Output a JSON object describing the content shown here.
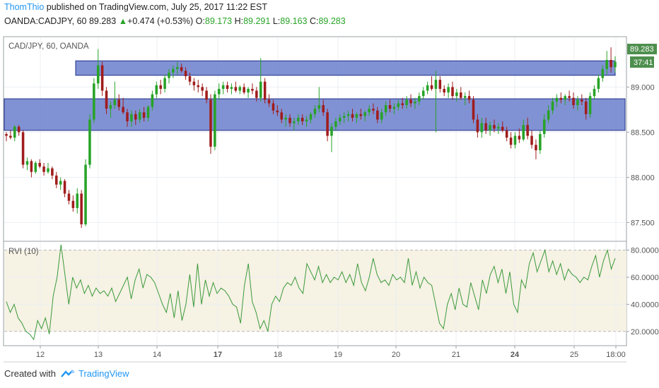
{
  "header": {
    "author": "ThomThio",
    "published": " published on TradingView.com, July 25, 2017 11:22 EST",
    "symbol_line": "OANDA:CADJPY, 60",
    "last_price": "89.283",
    "change_arrow": "▲",
    "change": "+0.474 (+0.53%)",
    "o_label": "O:",
    "o_value": "89.173",
    "h_label": "H:",
    "h_value": "89.291",
    "l_label": "L:",
    "l_value": "89.163",
    "c_label": "C:",
    "c_value": "89.283"
  },
  "price_pane": {
    "legend": "CAD/JPY, 60, OANDA",
    "price_tag": "89.283",
    "countdown_tag": "37:41",
    "y_ticks": [
      "89.000",
      "88.500",
      "88.000",
      "87.500"
    ]
  },
  "rvi_pane": {
    "legend": "RVI (10)",
    "y_ticks": [
      "80.0000",
      "60.0000",
      "40.0000",
      "20.0000"
    ]
  },
  "x_ticks": [
    "12",
    "13",
    "14",
    "17",
    "18",
    "19",
    "20",
    "21",
    "24",
    "25",
    "18:00"
  ],
  "footer": {
    "created_with": "Created with",
    "brand": "TradingView"
  },
  "colors": {
    "up": "#27a327",
    "down": "#a01c1c",
    "zone_fill": "#6b7fcc",
    "zone_stroke": "#1f2f8a",
    "rvi_line": "#3c9a3c",
    "rvi_bg": "#f6f2e4",
    "accent": "#2196f3"
  },
  "chart_data": [
    {
      "type": "candlestick",
      "title": "CAD/JPY, 60, OANDA",
      "ylim": [
        87.3,
        89.55
      ],
      "zones": [
        {
          "low": 89.13,
          "high": 89.29
        },
        {
          "low": 88.52,
          "high": 88.87
        }
      ],
      "candles": [
        [
          88.48,
          88.5,
          88.4,
          88.46
        ],
        [
          88.46,
          88.52,
          88.42,
          88.44
        ],
        [
          88.44,
          88.58,
          88.4,
          88.56
        ],
        [
          88.56,
          88.58,
          88.46,
          88.5
        ],
        [
          88.5,
          88.52,
          88.1,
          88.14
        ],
        [
          88.14,
          88.22,
          88.08,
          88.18
        ],
        [
          88.18,
          88.2,
          88.0,
          88.06
        ],
        [
          88.06,
          88.18,
          88.04,
          88.16
        ],
        [
          88.16,
          88.2,
          88.1,
          88.12
        ],
        [
          88.12,
          88.16,
          88.02,
          88.06
        ],
        [
          88.06,
          88.16,
          88.04,
          88.1
        ],
        [
          88.1,
          88.12,
          87.98,
          88.02
        ],
        [
          88.02,
          88.06,
          87.88,
          87.92
        ],
        [
          87.92,
          88.0,
          87.86,
          87.96
        ],
        [
          87.96,
          87.98,
          87.78,
          87.82
        ],
        [
          87.82,
          87.86,
          87.7,
          87.74
        ],
        [
          87.74,
          87.8,
          87.62,
          87.66
        ],
        [
          87.66,
          87.88,
          87.6,
          87.82
        ],
        [
          87.82,
          87.86,
          87.44,
          87.48
        ],
        [
          87.48,
          88.2,
          87.46,
          88.14
        ],
        [
          88.14,
          88.7,
          88.1,
          88.64
        ],
        [
          88.64,
          89.1,
          88.6,
          89.04
        ],
        [
          89.04,
          89.42,
          88.98,
          89.24
        ],
        [
          89.24,
          89.28,
          88.9,
          88.96
        ],
        [
          88.96,
          89.0,
          88.7,
          88.76
        ],
        [
          88.76,
          88.84,
          88.66,
          88.8
        ],
        [
          88.8,
          89.06,
          88.76,
          88.86
        ],
        [
          88.86,
          88.92,
          88.74,
          88.78
        ],
        [
          88.78,
          88.88,
          88.7,
          88.72
        ],
        [
          88.72,
          88.76,
          88.56,
          88.62
        ],
        [
          88.62,
          88.74,
          88.56,
          88.7
        ],
        [
          88.7,
          88.74,
          88.58,
          88.64
        ],
        [
          88.64,
          88.76,
          88.6,
          88.72
        ],
        [
          88.72,
          88.78,
          88.62,
          88.66
        ],
        [
          88.66,
          88.8,
          88.62,
          88.78
        ],
        [
          88.78,
          88.96,
          88.74,
          88.92
        ],
        [
          88.92,
          89.06,
          88.88,
          89.02
        ],
        [
          89.02,
          89.08,
          88.92,
          88.98
        ],
        [
          88.98,
          89.14,
          88.94,
          89.1
        ],
        [
          89.1,
          89.2,
          89.04,
          89.16
        ],
        [
          89.16,
          89.24,
          89.1,
          89.2
        ],
        [
          89.2,
          89.28,
          89.14,
          89.22
        ],
        [
          89.22,
          89.26,
          89.16,
          89.18
        ],
        [
          89.18,
          89.22,
          89.08,
          89.12
        ],
        [
          89.12,
          89.16,
          89.02,
          89.06
        ],
        [
          89.06,
          89.1,
          88.96,
          89.02
        ],
        [
          89.02,
          89.08,
          88.94,
          89.0
        ],
        [
          89.0,
          89.04,
          88.9,
          88.96
        ],
        [
          88.96,
          89.0,
          88.82,
          88.86
        ],
        [
          88.86,
          88.92,
          88.26,
          88.34
        ],
        [
          88.34,
          88.96,
          88.3,
          88.92
        ],
        [
          88.92,
          89.04,
          88.86,
          88.98
        ],
        [
          88.98,
          89.06,
          88.92,
          89.02
        ],
        [
          89.02,
          89.06,
          88.94,
          88.98
        ],
        [
          88.98,
          89.04,
          88.92,
          89.0
        ],
        [
          89.0,
          89.06,
          88.94,
          88.96
        ],
        [
          88.96,
          89.02,
          88.92,
          89.0
        ],
        [
          89.0,
          89.04,
          88.92,
          88.94
        ],
        [
          88.94,
          89.0,
          88.88,
          88.98
        ],
        [
          88.98,
          89.04,
          88.92,
          88.96
        ],
        [
          88.96,
          89.0,
          88.84,
          88.88
        ],
        [
          88.88,
          89.32,
          88.84,
          89.06
        ],
        [
          89.06,
          89.1,
          88.82,
          88.86
        ],
        [
          88.86,
          88.92,
          88.78,
          88.82
        ],
        [
          88.82,
          88.86,
          88.7,
          88.74
        ],
        [
          88.74,
          88.8,
          88.68,
          88.72
        ],
        [
          88.72,
          88.76,
          88.6,
          88.64
        ],
        [
          88.64,
          88.7,
          88.56,
          88.66
        ],
        [
          88.66,
          88.7,
          88.56,
          88.6
        ],
        [
          88.6,
          88.66,
          88.52,
          88.62
        ],
        [
          88.62,
          88.7,
          88.58,
          88.66
        ],
        [
          88.66,
          88.7,
          88.58,
          88.62
        ],
        [
          88.62,
          88.68,
          88.56,
          88.64
        ],
        [
          88.64,
          88.72,
          88.6,
          88.7
        ],
        [
          88.7,
          88.8,
          88.66,
          88.76
        ],
        [
          88.76,
          89.0,
          88.72,
          88.8
        ],
        [
          88.8,
          88.86,
          88.68,
          88.72
        ],
        [
          88.72,
          88.76,
          88.4,
          88.46
        ],
        [
          88.46,
          88.6,
          88.28,
          88.56
        ],
        [
          88.56,
          88.66,
          88.52,
          88.62
        ],
        [
          88.62,
          88.7,
          88.58,
          88.66
        ],
        [
          88.66,
          88.72,
          88.6,
          88.68
        ],
        [
          88.68,
          88.74,
          88.62,
          88.7
        ],
        [
          88.7,
          88.76,
          88.62,
          88.66
        ],
        [
          88.66,
          88.72,
          88.6,
          88.7
        ],
        [
          88.7,
          88.76,
          88.64,
          88.68
        ],
        [
          88.68,
          88.74,
          88.62,
          88.72
        ],
        [
          88.72,
          88.8,
          88.68,
          88.76
        ],
        [
          88.76,
          88.82,
          88.7,
          88.74
        ],
        [
          88.74,
          88.78,
          88.6,
          88.64
        ],
        [
          88.64,
          88.76,
          88.6,
          88.72
        ],
        [
          88.72,
          88.84,
          88.68,
          88.8
        ],
        [
          88.8,
          88.86,
          88.72,
          88.76
        ],
        [
          88.76,
          88.82,
          88.7,
          88.78
        ],
        [
          88.78,
          88.86,
          88.74,
          88.82
        ],
        [
          88.82,
          88.88,
          88.76,
          88.8
        ],
        [
          88.8,
          88.9,
          88.76,
          88.86
        ],
        [
          88.86,
          88.92,
          88.78,
          88.82
        ],
        [
          88.82,
          88.88,
          88.76,
          88.84
        ],
        [
          88.84,
          88.94,
          88.8,
          88.9
        ],
        [
          88.9,
          89.0,
          88.86,
          88.96
        ],
        [
          88.96,
          89.06,
          88.92,
          89.02
        ],
        [
          89.02,
          89.12,
          88.96,
          88.98
        ],
        [
          88.98,
          89.18,
          88.5,
          89.08
        ],
        [
          89.08,
          89.12,
          88.94,
          88.98
        ],
        [
          88.98,
          89.02,
          88.9,
          88.94
        ],
        [
          88.94,
          89.04,
          88.88,
          89.0
        ],
        [
          89.0,
          89.06,
          88.86,
          88.9
        ],
        [
          88.9,
          88.98,
          88.84,
          88.94
        ],
        [
          88.94,
          89.0,
          88.86,
          88.88
        ],
        [
          88.88,
          88.94,
          88.8,
          88.9
        ],
        [
          88.9,
          88.96,
          88.82,
          88.86
        ],
        [
          88.86,
          88.9,
          88.6,
          88.64
        ],
        [
          88.64,
          88.7,
          88.44,
          88.5
        ],
        [
          88.5,
          88.66,
          88.44,
          88.6
        ],
        [
          88.6,
          88.66,
          88.48,
          88.52
        ],
        [
          88.52,
          88.62,
          88.46,
          88.58
        ],
        [
          88.58,
          88.64,
          88.5,
          88.54
        ],
        [
          88.54,
          88.6,
          88.48,
          88.56
        ],
        [
          88.56,
          88.62,
          88.5,
          88.52
        ],
        [
          88.52,
          88.56,
          88.4,
          88.44
        ],
        [
          88.44,
          88.5,
          88.32,
          88.36
        ],
        [
          88.36,
          88.5,
          88.32,
          88.46
        ],
        [
          88.46,
          88.54,
          88.38,
          88.42
        ],
        [
          88.42,
          88.64,
          88.4,
          88.58
        ],
        [
          88.58,
          88.66,
          88.42,
          88.46
        ],
        [
          88.46,
          88.52,
          88.32,
          88.36
        ],
        [
          88.36,
          88.42,
          88.2,
          88.3
        ],
        [
          88.3,
          88.52,
          88.26,
          88.48
        ],
        [
          88.48,
          88.7,
          88.44,
          88.64
        ],
        [
          88.64,
          88.8,
          88.6,
          88.74
        ],
        [
          88.74,
          88.88,
          88.7,
          88.84
        ],
        [
          88.84,
          88.92,
          88.78,
          88.88
        ],
        [
          88.88,
          88.94,
          88.82,
          88.86
        ],
        [
          88.86,
          88.92,
          88.8,
          88.9
        ],
        [
          88.9,
          88.96,
          88.84,
          88.88
        ],
        [
          88.88,
          88.94,
          88.76,
          88.8
        ],
        [
          88.8,
          88.9,
          88.74,
          88.86
        ],
        [
          88.86,
          88.92,
          88.8,
          88.84
        ],
        [
          88.84,
          88.88,
          88.64,
          88.7
        ],
        [
          88.7,
          88.94,
          88.66,
          88.9
        ],
        [
          88.9,
          89.02,
          88.86,
          88.98
        ],
        [
          88.98,
          89.14,
          88.94,
          89.1
        ],
        [
          89.1,
          89.24,
          89.06,
          89.2
        ],
        [
          89.2,
          89.4,
          89.14,
          89.3
        ],
        [
          89.3,
          89.44,
          89.16,
          89.22
        ],
        [
          89.22,
          89.34,
          89.16,
          89.28
        ]
      ]
    },
    {
      "type": "line",
      "title": "RVI (10)",
      "ylim": [
        10,
        86
      ],
      "reference_lines": [
        80,
        20
      ],
      "series": [
        {
          "name": "RVI (10)",
          "values": [
            42,
            34,
            40,
            30,
            26,
            20,
            18,
            14,
            28,
            22,
            30,
            18,
            46,
            60,
            84,
            62,
            40,
            60,
            52,
            58,
            48,
            54,
            46,
            52,
            48,
            50,
            46,
            52,
            42,
            48,
            54,
            60,
            44,
            58,
            66,
            52,
            62,
            60,
            56,
            48,
            40,
            34,
            48,
            30,
            50,
            28,
            40,
            62,
            38,
            70,
            40,
            58,
            46,
            56,
            48,
            52,
            50,
            46,
            40,
            38,
            26,
            54,
            70,
            42,
            34,
            22,
            28,
            20,
            40,
            46,
            42,
            52,
            56,
            54,
            60,
            52,
            48,
            70,
            64,
            58,
            68,
            56,
            62,
            56,
            60,
            58,
            64,
            56,
            62,
            54,
            70,
            56,
            50,
            60,
            74,
            62,
            56,
            58,
            54,
            62,
            58,
            60,
            56,
            74,
            54,
            64,
            52,
            60,
            56,
            54,
            40,
            26,
            22,
            40,
            48,
            36,
            52,
            40,
            38,
            56,
            46,
            36,
            58,
            48,
            62,
            68,
            56,
            66,
            48,
            64,
            40,
            34,
            58,
            52,
            70,
            78,
            64,
            72,
            80,
            64,
            72,
            62,
            70,
            58,
            66,
            62,
            60,
            56,
            60,
            58,
            68,
            76,
            60,
            72,
            80,
            66,
            74
          ]
        }
      ]
    }
  ]
}
